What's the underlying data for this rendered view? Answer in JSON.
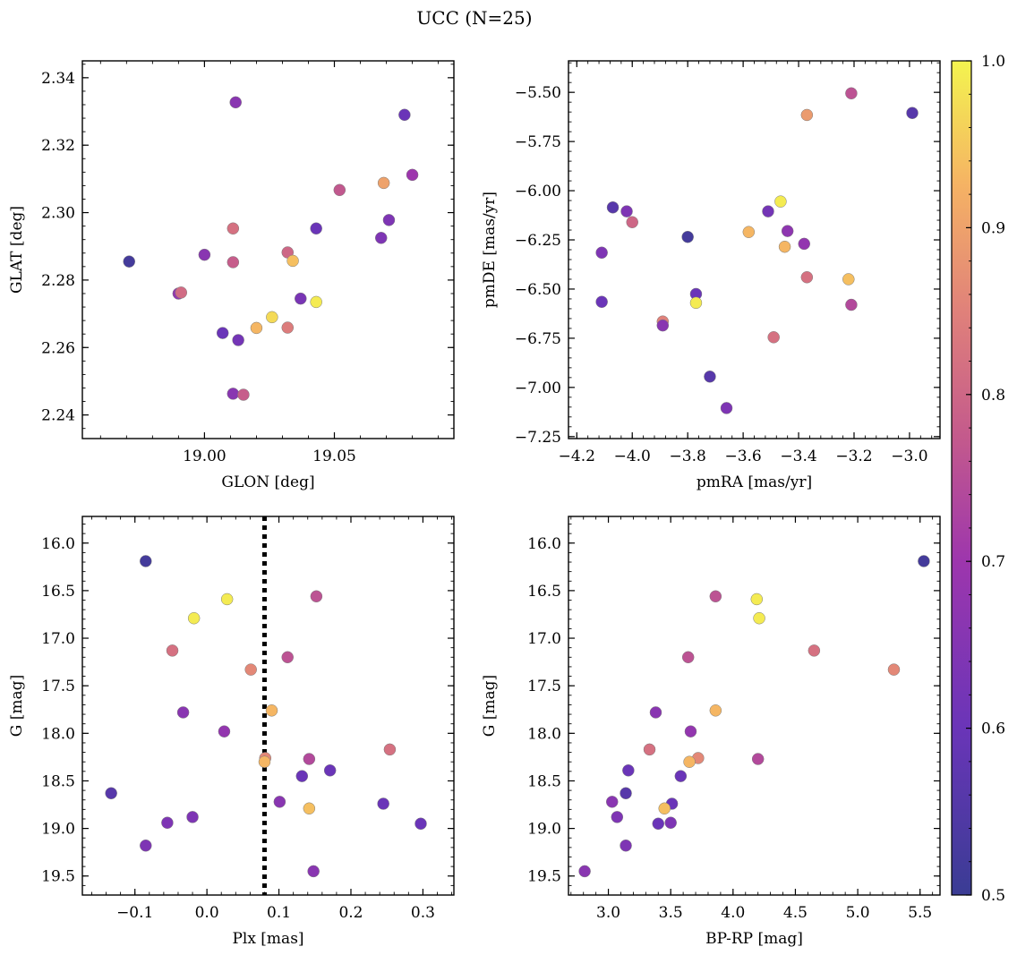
{
  "figure": {
    "title": "UCC (N=25)",
    "colorbar": {
      "colormap": "plasma",
      "range": [
        0.5,
        1.0
      ],
      "ticks": [
        "0.5",
        "0.6",
        "0.7",
        "0.8",
        "0.9",
        "1.0"
      ]
    }
  },
  "chart_data": [
    {
      "type": "scatter",
      "xlabel": "GLON [deg]",
      "ylabel": "GLAT [deg]",
      "xlim": [
        18.953,
        19.096
      ],
      "ylim": [
        2.233,
        2.345
      ],
      "xticks": [
        19.0,
        19.05
      ],
      "xtick_labels": [
        "19.00",
        "19.05"
      ],
      "yticks": [
        2.24,
        2.26,
        2.28,
        2.3,
        2.32,
        2.34
      ],
      "ytick_labels": [
        "2.24",
        "2.26",
        "2.28",
        "2.30",
        "2.32",
        "2.34"
      ],
      "invert_y": false,
      "points": [
        {
          "x": 18.971,
          "y": 2.2855,
          "c": 0.52
        },
        {
          "x": 18.99,
          "y": 2.276,
          "c": 0.68
        },
        {
          "x": 18.991,
          "y": 2.2763,
          "c": 0.81
        },
        {
          "x": 19.0,
          "y": 2.2875,
          "c": 0.66
        },
        {
          "x": 19.007,
          "y": 2.2643,
          "c": 0.6
        },
        {
          "x": 19.011,
          "y": 2.2953,
          "c": 0.82
        },
        {
          "x": 19.011,
          "y": 2.2853,
          "c": 0.78
        },
        {
          "x": 19.011,
          "y": 2.2463,
          "c": 0.66
        },
        {
          "x": 19.012,
          "y": 2.3327,
          "c": 0.66
        },
        {
          "x": 19.013,
          "y": 2.2622,
          "c": 0.62
        },
        {
          "x": 19.015,
          "y": 2.246,
          "c": 0.78
        },
        {
          "x": 19.02,
          "y": 2.2658,
          "c": 0.93
        },
        {
          "x": 19.026,
          "y": 2.269,
          "c": 0.97
        },
        {
          "x": 19.032,
          "y": 2.2882,
          "c": 0.8
        },
        {
          "x": 19.032,
          "y": 2.2659,
          "c": 0.84
        },
        {
          "x": 19.034,
          "y": 2.2857,
          "c": 0.94
        },
        {
          "x": 19.037,
          "y": 2.2745,
          "c": 0.63
        },
        {
          "x": 19.043,
          "y": 2.2953,
          "c": 0.6
        },
        {
          "x": 19.043,
          "y": 2.2735,
          "c": 0.99
        },
        {
          "x": 19.052,
          "y": 2.3067,
          "c": 0.77
        },
        {
          "x": 19.068,
          "y": 2.2925,
          "c": 0.64
        },
        {
          "x": 19.069,
          "y": 2.3088,
          "c": 0.9
        },
        {
          "x": 19.071,
          "y": 2.2978,
          "c": 0.64
        },
        {
          "x": 19.077,
          "y": 2.329,
          "c": 0.6
        },
        {
          "x": 19.08,
          "y": 2.3112,
          "c": 0.7
        }
      ]
    },
    {
      "type": "scatter",
      "xlabel": "pmRA [mas/yr]",
      "ylabel": "pmDE [mas/yr]",
      "xlim": [
        -4.23,
        -2.89
      ],
      "ylim": [
        -7.26,
        -5.34
      ],
      "xticks": [
        -4.2,
        -4.0,
        -3.8,
        -3.6,
        -3.4,
        -3.2,
        -3.0
      ],
      "xtick_labels": [
        "−4.2",
        "−4.0",
        "−3.8",
        "−3.6",
        "−3.4",
        "−3.2",
        "−3.0"
      ],
      "yticks": [
        -7.25,
        -7.0,
        -6.75,
        -6.5,
        -6.25,
        -6.0,
        -5.75,
        -5.5
      ],
      "ytick_labels": [
        "−7.25",
        "−7.00",
        "−6.75",
        "−6.50",
        "−6.25",
        "−6.00",
        "−5.75",
        "−5.50"
      ],
      "invert_y": false,
      "points": [
        {
          "x": -4.11,
          "y": -6.315,
          "c": 0.64
        },
        {
          "x": -4.11,
          "y": -6.565,
          "c": 0.6
        },
        {
          "x": -4.07,
          "y": -6.085,
          "c": 0.56
        },
        {
          "x": -4.02,
          "y": -6.105,
          "c": 0.64
        },
        {
          "x": -4.0,
          "y": -6.16,
          "c": 0.8
        },
        {
          "x": -3.89,
          "y": -6.665,
          "c": 0.85
        },
        {
          "x": -3.89,
          "y": -6.685,
          "c": 0.66
        },
        {
          "x": -3.8,
          "y": -6.235,
          "c": 0.52
        },
        {
          "x": -3.77,
          "y": -6.525,
          "c": 0.6
        },
        {
          "x": -3.77,
          "y": -6.57,
          "c": 0.99
        },
        {
          "x": -3.72,
          "y": -6.945,
          "c": 0.56
        },
        {
          "x": -3.66,
          "y": -7.105,
          "c": 0.64
        },
        {
          "x": -3.58,
          "y": -6.21,
          "c": 0.93
        },
        {
          "x": -3.51,
          "y": -6.105,
          "c": 0.62
        },
        {
          "x": -3.49,
          "y": -6.745,
          "c": 0.82
        },
        {
          "x": -3.465,
          "y": -6.055,
          "c": 0.99
        },
        {
          "x": -3.45,
          "y": -6.285,
          "c": 0.93
        },
        {
          "x": -3.44,
          "y": -6.205,
          "c": 0.67
        },
        {
          "x": -3.38,
          "y": -6.27,
          "c": 0.68
        },
        {
          "x": -3.37,
          "y": -5.615,
          "c": 0.89
        },
        {
          "x": -3.37,
          "y": -6.44,
          "c": 0.82
        },
        {
          "x": -3.22,
          "y": -6.45,
          "c": 0.94
        },
        {
          "x": -3.21,
          "y": -5.505,
          "c": 0.76
        },
        {
          "x": -3.21,
          "y": -6.58,
          "c": 0.74
        },
        {
          "x": -2.99,
          "y": -5.605,
          "c": 0.56
        }
      ]
    },
    {
      "type": "scatter",
      "xlabel": "Plx [mas]",
      "ylabel": "G [mag]",
      "xlim": [
        -0.173,
        0.343
      ],
      "ylim": [
        15.72,
        19.7
      ],
      "xticks": [
        -0.1,
        0.0,
        0.1,
        0.2,
        0.3
      ],
      "xtick_labels": [
        "−0.1",
        "0.0",
        "0.1",
        "0.2",
        "0.3"
      ],
      "yticks": [
        16.0,
        16.5,
        17.0,
        17.5,
        18.0,
        18.5,
        19.0,
        19.5
      ],
      "ytick_labels": [
        "16.0",
        "16.5",
        "17.0",
        "17.5",
        "18.0",
        "18.5",
        "19.0",
        "19.5"
      ],
      "invert_y": true,
      "vline": {
        "x": 0.08,
        "style": "dotted"
      },
      "points": [
        {
          "x": -0.085,
          "y": 16.19,
          "c": 0.52
        },
        {
          "x": 0.028,
          "y": 16.59,
          "c": 0.99
        },
        {
          "x": 0.152,
          "y": 16.56,
          "c": 0.76
        },
        {
          "x": -0.018,
          "y": 16.79,
          "c": 0.99
        },
        {
          "x": -0.048,
          "y": 17.13,
          "c": 0.82
        },
        {
          "x": 0.112,
          "y": 17.2,
          "c": 0.76
        },
        {
          "x": 0.061,
          "y": 17.33,
          "c": 0.86
        },
        {
          "x": 0.09,
          "y": 17.76,
          "c": 0.93
        },
        {
          "x": -0.033,
          "y": 17.78,
          "c": 0.66
        },
        {
          "x": 0.024,
          "y": 17.98,
          "c": 0.68
        },
        {
          "x": 0.254,
          "y": 18.17,
          "c": 0.82
        },
        {
          "x": 0.081,
          "y": 18.26,
          "c": 0.86
        },
        {
          "x": 0.08,
          "y": 18.3,
          "c": 0.93
        },
        {
          "x": 0.142,
          "y": 18.27,
          "c": 0.74
        },
        {
          "x": 0.171,
          "y": 18.39,
          "c": 0.6
        },
        {
          "x": 0.132,
          "y": 18.45,
          "c": 0.6
        },
        {
          "x": -0.133,
          "y": 18.63,
          "c": 0.56
        },
        {
          "x": 0.101,
          "y": 18.72,
          "c": 0.66
        },
        {
          "x": 0.245,
          "y": 18.74,
          "c": 0.6
        },
        {
          "x": 0.142,
          "y": 18.79,
          "c": 0.94
        },
        {
          "x": -0.02,
          "y": 18.88,
          "c": 0.64
        },
        {
          "x": -0.055,
          "y": 18.94,
          "c": 0.64
        },
        {
          "x": 0.297,
          "y": 18.95,
          "c": 0.6
        },
        {
          "x": -0.085,
          "y": 19.18,
          "c": 0.64
        },
        {
          "x": 0.148,
          "y": 19.45,
          "c": 0.66
        }
      ]
    },
    {
      "type": "scatter",
      "xlabel": "BP-RP [mag]",
      "ylabel": "G [mag]",
      "xlim": [
        2.68,
        5.66
      ],
      "ylim": [
        15.72,
        19.7
      ],
      "xticks": [
        3.0,
        3.5,
        4.0,
        4.5,
        5.0,
        5.5
      ],
      "xtick_labels": [
        "3.0",
        "3.5",
        "4.0",
        "4.5",
        "5.0",
        "5.5"
      ],
      "yticks": [
        16.0,
        16.5,
        17.0,
        17.5,
        18.0,
        18.5,
        19.0,
        19.5
      ],
      "ytick_labels": [
        "16.0",
        "16.5",
        "17.0",
        "17.5",
        "18.0",
        "18.5",
        "19.0",
        "19.5"
      ],
      "invert_y": true,
      "points": [
        {
          "x": 5.53,
          "y": 16.19,
          "c": 0.52
        },
        {
          "x": 4.19,
          "y": 16.59,
          "c": 0.99
        },
        {
          "x": 3.86,
          "y": 16.56,
          "c": 0.76
        },
        {
          "x": 4.21,
          "y": 16.79,
          "c": 0.99
        },
        {
          "x": 4.65,
          "y": 17.13,
          "c": 0.82
        },
        {
          "x": 3.64,
          "y": 17.2,
          "c": 0.76
        },
        {
          "x": 5.29,
          "y": 17.33,
          "c": 0.86
        },
        {
          "x": 3.86,
          "y": 17.76,
          "c": 0.93
        },
        {
          "x": 3.38,
          "y": 17.78,
          "c": 0.66
        },
        {
          "x": 3.66,
          "y": 17.98,
          "c": 0.68
        },
        {
          "x": 3.33,
          "y": 18.17,
          "c": 0.82
        },
        {
          "x": 3.72,
          "y": 18.26,
          "c": 0.86
        },
        {
          "x": 3.65,
          "y": 18.3,
          "c": 0.93
        },
        {
          "x": 4.2,
          "y": 18.27,
          "c": 0.74
        },
        {
          "x": 3.16,
          "y": 18.39,
          "c": 0.6
        },
        {
          "x": 3.58,
          "y": 18.45,
          "c": 0.6
        },
        {
          "x": 3.14,
          "y": 18.63,
          "c": 0.56
        },
        {
          "x": 3.03,
          "y": 18.72,
          "c": 0.66
        },
        {
          "x": 3.51,
          "y": 18.74,
          "c": 0.6
        },
        {
          "x": 3.45,
          "y": 18.79,
          "c": 0.94
        },
        {
          "x": 3.07,
          "y": 18.88,
          "c": 0.64
        },
        {
          "x": 3.5,
          "y": 18.94,
          "c": 0.64
        },
        {
          "x": 3.4,
          "y": 18.95,
          "c": 0.6
        },
        {
          "x": 3.14,
          "y": 19.18,
          "c": 0.64
        },
        {
          "x": 2.81,
          "y": 19.45,
          "c": 0.66
        }
      ]
    }
  ]
}
